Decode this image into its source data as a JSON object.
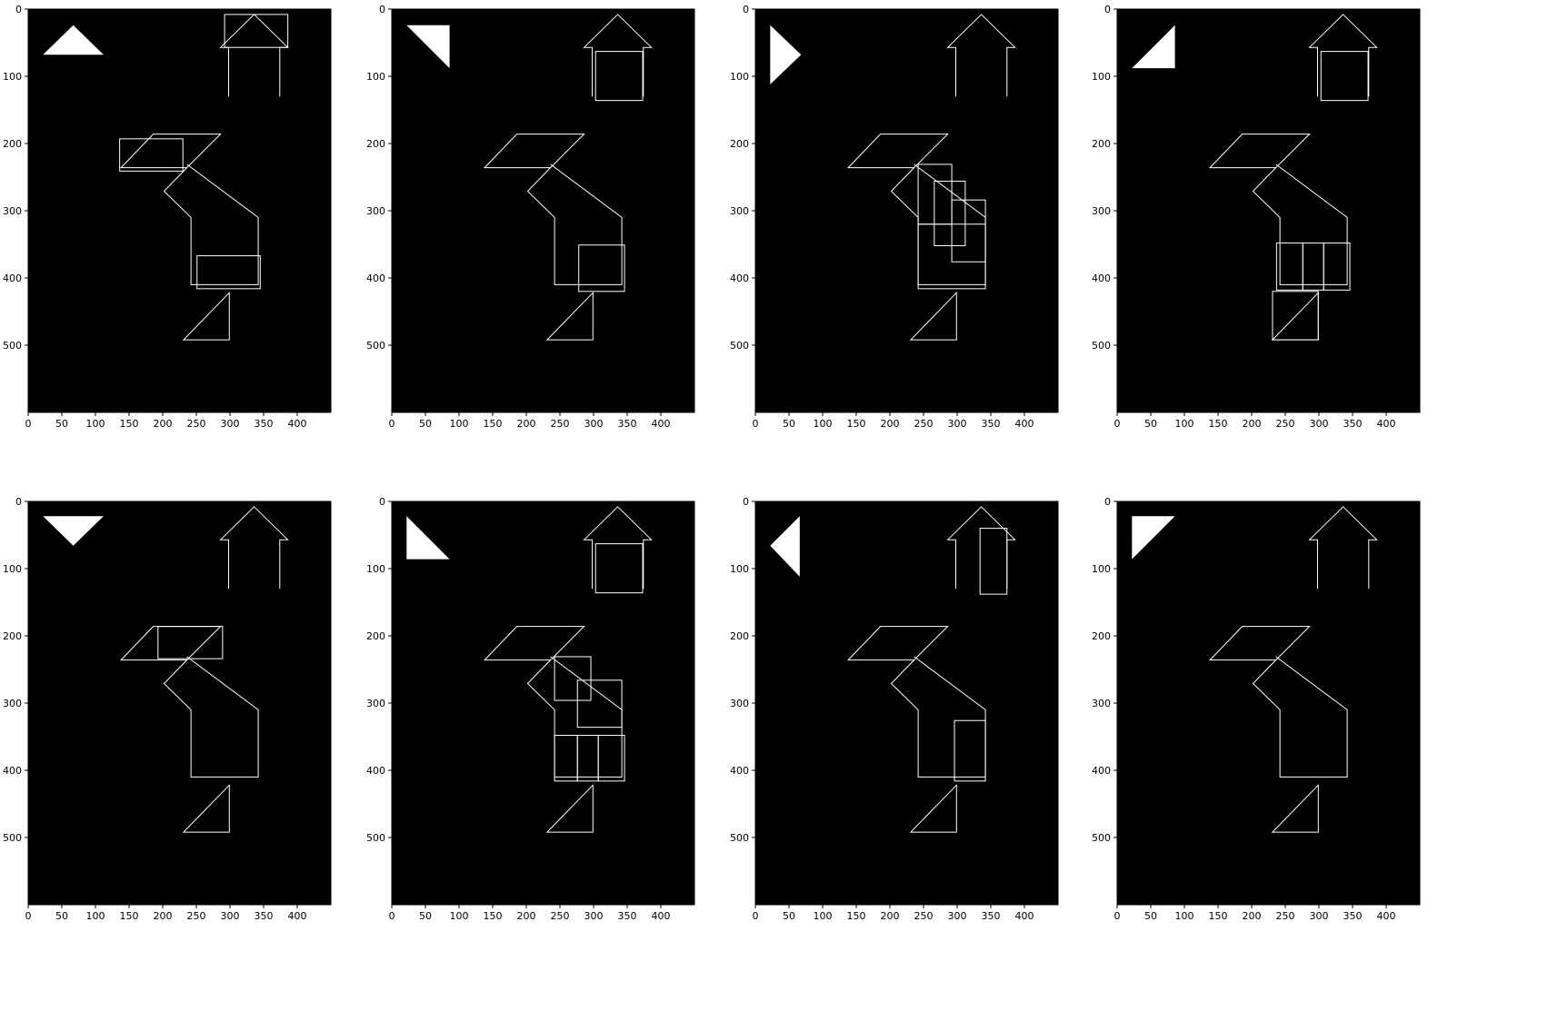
{
  "colors": {
    "background": "#000000",
    "stroke": "#ffffff",
    "axis": "#000000",
    "figure": "#ffffff"
  },
  "axes": {
    "x_ticks": [
      0,
      50,
      100,
      150,
      200,
      250,
      300,
      350,
      400
    ],
    "y_ticks": [
      0,
      100,
      200,
      300,
      400,
      500
    ],
    "xlim": [
      0,
      450
    ],
    "ylim": [
      600,
      0
    ]
  },
  "base_outline": {
    "house": [
      [
        298,
        130
      ],
      [
        298,
        57
      ],
      [
        286,
        57
      ],
      [
        336,
        8
      ],
      [
        386,
        57
      ],
      [
        374,
        57
      ],
      [
        374,
        130
      ]
    ],
    "parallelogram": [
      [
        138,
        236
      ],
      [
        186,
        186
      ],
      [
        286,
        186
      ],
      [
        236,
        236
      ]
    ],
    "body": [
      [
        236,
        236
      ],
      [
        202,
        271
      ],
      [
        242,
        310
      ],
      [
        242,
        410
      ],
      [
        342,
        410
      ],
      [
        342,
        310
      ],
      [
        236,
        231
      ]
    ],
    "small_triangle": [
      [
        231,
        492
      ],
      [
        299,
        422
      ],
      [
        299,
        492
      ]
    ]
  },
  "panels": [
    {
      "corner_triangle": [
        [
          22,
          68
        ],
        [
          67,
          24
        ],
        [
          112,
          68
        ]
      ],
      "boxes": [
        [
          292,
          8,
          386,
          57
        ],
        [
          136,
          193,
          230,
          241
        ],
        [
          251,
          367,
          345,
          416
        ]
      ]
    },
    {
      "corner_triangle": [
        [
          22,
          24
        ],
        [
          86,
          24
        ],
        [
          86,
          88
        ]
      ],
      "boxes": [
        [
          303,
          63,
          373,
          136
        ],
        [
          278,
          351,
          346,
          420
        ]
      ]
    },
    {
      "corner_triangle": [
        [
          22,
          24
        ],
        [
          68,
          68
        ],
        [
          22,
          112
        ]
      ],
      "boxes": [
        [
          242,
          231,
          292,
          320
        ],
        [
          266,
          256,
          312,
          352
        ],
        [
          292,
          284,
          342,
          376
        ],
        [
          242,
          320,
          342,
          416
        ]
      ]
    },
    {
      "corner_triangle": [
        [
          22,
          88
        ],
        [
          86,
          24
        ],
        [
          86,
          88
        ]
      ],
      "boxes": [
        [
          303,
          63,
          373,
          136
        ],
        [
          237,
          348,
          276,
          418
        ],
        [
          276,
          348,
          307,
          418
        ],
        [
          307,
          348,
          346,
          418
        ],
        [
          231,
          420,
          299,
          492
        ]
      ]
    },
    {
      "corner_triangle": [
        [
          22,
          22
        ],
        [
          112,
          22
        ],
        [
          67,
          66
        ]
      ],
      "boxes": [
        [
          193,
          186,
          289,
          234
        ]
      ]
    },
    {
      "corner_triangle": [
        [
          22,
          22
        ],
        [
          86,
          86
        ],
        [
          22,
          86
        ]
      ],
      "boxes": [
        [
          303,
          63,
          373,
          136
        ],
        [
          242,
          231,
          296,
          296
        ],
        [
          276,
          266,
          342,
          336
        ],
        [
          242,
          348,
          276,
          416
        ],
        [
          276,
          348,
          307,
          416
        ],
        [
          307,
          348,
          346,
          416
        ]
      ]
    },
    {
      "corner_triangle": [
        [
          66,
          22
        ],
        [
          66,
          112
        ],
        [
          22,
          66
        ]
      ],
      "boxes": [
        [
          334,
          40,
          374,
          138
        ],
        [
          296,
          326,
          342,
          416
        ]
      ]
    },
    {
      "corner_triangle": [
        [
          22,
          22
        ],
        [
          86,
          22
        ],
        [
          22,
          86
        ]
      ],
      "boxes": []
    }
  ]
}
